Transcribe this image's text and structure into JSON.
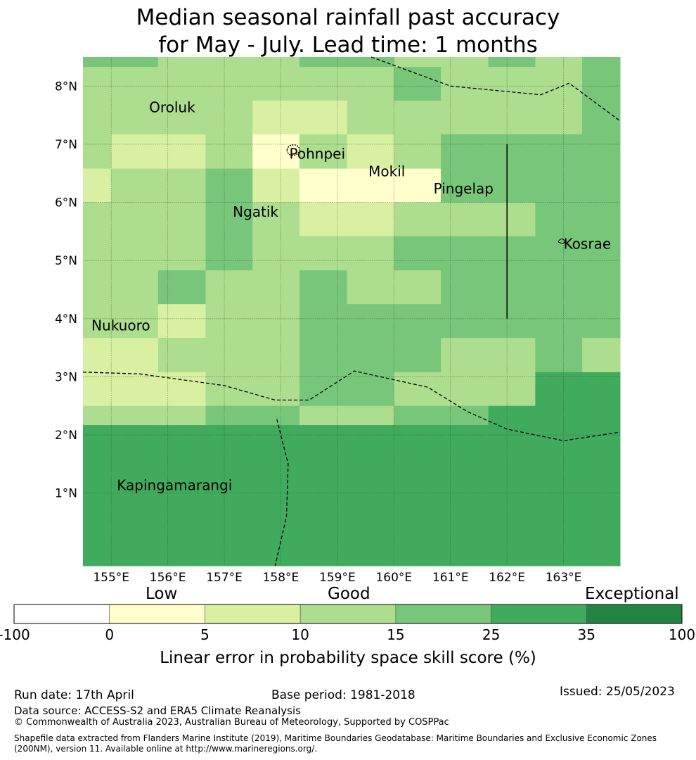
{
  "title": {
    "line1": "Median seasonal rainfall past accuracy",
    "line2": "for May - July. Lead time: 1 months"
  },
  "map": {
    "lon_range": [
      154.5,
      164.0
    ],
    "lat_range": [
      -0.25,
      8.5
    ],
    "lon_ticks": [
      {
        "value": 155,
        "label": "155°E"
      },
      {
        "value": 156,
        "label": "156°E"
      },
      {
        "value": 157,
        "label": "157°E"
      },
      {
        "value": 158,
        "label": "158°E"
      },
      {
        "value": 159,
        "label": "159°E"
      },
      {
        "value": 160,
        "label": "160°E"
      },
      {
        "value": 161,
        "label": "161°E"
      },
      {
        "value": 162,
        "label": "162°E"
      },
      {
        "value": 163,
        "label": "163°E"
      }
    ],
    "lat_ticks": [
      {
        "value": 8,
        "label": "8°N"
      },
      {
        "value": 7,
        "label": "7°N"
      },
      {
        "value": 6,
        "label": "6°N"
      },
      {
        "value": 5,
        "label": "5°N"
      },
      {
        "value": 4,
        "label": "4°N"
      },
      {
        "value": 3,
        "label": "3°N"
      },
      {
        "value": 2,
        "label": "2°N"
      },
      {
        "value": 1,
        "label": "1°N"
      }
    ],
    "grid": true,
    "grid_cell_edges_lon": [
      154.5,
      155.0,
      155.83,
      156.67,
      157.5,
      158.33,
      159.17,
      160.0,
      160.83,
      161.67,
      162.5,
      163.33,
      164.0
    ],
    "grid_cell_edges_lat": [
      8.5,
      8.33,
      7.75,
      7.17,
      6.58,
      6.0,
      5.42,
      4.83,
      4.25,
      3.67,
      3.08,
      2.5,
      2.17,
      -0.25
    ],
    "skill_classes": [
      [
        4,
        4,
        3,
        3,
        3,
        4,
        4,
        3,
        3,
        4,
        3,
        4
      ],
      [
        3,
        3,
        3,
        3,
        3,
        3,
        3,
        4,
        3,
        3,
        3,
        4
      ],
      [
        3,
        3,
        3,
        3,
        2,
        2,
        3,
        3,
        3,
        3,
        3,
        4
      ],
      [
        3,
        2,
        2,
        3,
        1,
        3,
        2,
        3,
        4,
        4,
        4,
        4
      ],
      [
        2,
        3,
        3,
        4,
        2,
        1,
        1,
        1,
        4,
        4,
        4,
        4
      ],
      [
        3,
        3,
        3,
        4,
        3,
        2,
        2,
        3,
        3,
        3,
        4,
        4
      ],
      [
        3,
        3,
        3,
        4,
        3,
        3,
        3,
        4,
        4,
        4,
        4,
        4
      ],
      [
        3,
        3,
        4,
        3,
        3,
        4,
        3,
        3,
        4,
        4,
        4,
        4
      ],
      [
        3,
        3,
        2,
        3,
        3,
        4,
        4,
        4,
        4,
        4,
        4,
        4
      ],
      [
        2,
        2,
        3,
        3,
        3,
        4,
        4,
        4,
        3,
        3,
        4,
        3
      ],
      [
        2,
        2,
        2,
        3,
        3,
        4,
        4,
        3,
        3,
        3,
        5,
        5
      ],
      [
        3,
        3,
        3,
        4,
        4,
        3,
        3,
        4,
        4,
        5,
        5,
        5
      ],
      [
        5,
        5,
        5,
        5,
        5,
        5,
        5,
        5,
        5,
        5,
        5,
        5
      ]
    ],
    "places": [
      {
        "name": "Oroluk",
        "lon": 155.67,
        "lat": 7.55
      },
      {
        "name": "Pohnpei",
        "lon": 158.15,
        "lat": 6.75
      },
      {
        "name": "Mokil",
        "lon": 159.55,
        "lat": 6.45
      },
      {
        "name": "Pingelap",
        "lon": 160.7,
        "lat": 6.15
      },
      {
        "name": "Ngatik",
        "lon": 157.15,
        "lat": 5.75
      },
      {
        "name": "Kosrae",
        "lon": 163.0,
        "lat": 5.2
      },
      {
        "name": "Nukuoro",
        "lon": 154.65,
        "lat": 3.8
      },
      {
        "name": "Kapingamarangi",
        "lon": 155.1,
        "lat": 1.05
      }
    ],
    "eez_boundaries": [
      [
        [
          159.6,
          8.5
        ],
        [
          161.0,
          8.0
        ],
        [
          162.6,
          7.85
        ],
        [
          163.1,
          8.05
        ],
        [
          164.0,
          7.4
        ]
      ],
      [
        [
          154.5,
          3.08
        ],
        [
          155.5,
          3.05
        ],
        [
          157.0,
          2.85
        ],
        [
          157.9,
          2.6
        ],
        [
          158.5,
          2.6
        ],
        [
          159.3,
          3.1
        ],
        [
          160.0,
          2.95
        ],
        [
          160.6,
          2.82
        ],
        [
          161.3,
          2.4
        ],
        [
          162.0,
          2.1
        ],
        [
          163.0,
          1.9
        ],
        [
          164.0,
          2.05
        ]
      ],
      [
        [
          157.93,
          2.27
        ],
        [
          158.13,
          1.5
        ],
        [
          158.1,
          0.6
        ],
        [
          157.9,
          -0.25
        ]
      ]
    ],
    "solid_boundaries": [
      [
        [
          162.0,
          7.0
        ],
        [
          162.0,
          4.0
        ]
      ]
    ]
  },
  "colorbar": {
    "headings": {
      "low": "Low",
      "good": "Good",
      "exceptional": "Exceptional"
    },
    "bounds": [
      -100,
      0,
      5,
      10,
      15,
      25,
      35,
      100
    ],
    "bound_labels": [
      "-100",
      "0",
      "5",
      "10",
      "15",
      "25",
      "35",
      "100"
    ],
    "colors": [
      "#ffffff",
      "#ffffcc",
      "#d9f0a3",
      "#addd8e",
      "#78c679",
      "#41ab5d",
      "#238443"
    ],
    "label": "Linear error in probability space skill score (%)"
  },
  "footer": {
    "run_date": "Run date: 17th April",
    "base_period": "Base period: 1981-2018",
    "issued": "Issued: 25/05/2023",
    "data_source": "Data source: ACCESS-S2 and ERA5 Climate Reanalysis",
    "copyright": "© Commonwealth of Australia 2023, Australian Bureau of Meteorology, Supported by COSPPac",
    "shapefile_line1": "Shapefile data extracted from Flanders Marine Institute (2019), Maritime Boundaries Geodatabase: Maritime Boundaries and Exclusive Economic Zones",
    "shapefile_line2": "(200NM), version 11. Available online at http://www.marineregions.org/."
  }
}
